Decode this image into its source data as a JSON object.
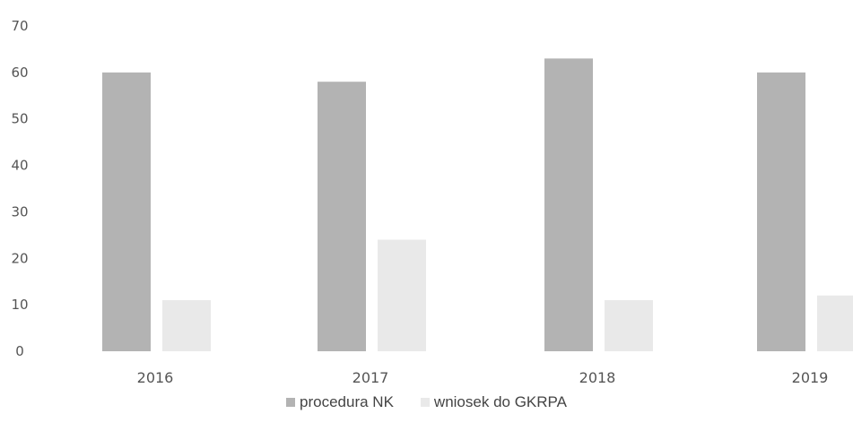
{
  "chart_data": {
    "type": "bar",
    "categories": [
      "2016",
      "2017",
      "2018",
      "2019"
    ],
    "series": [
      {
        "name": "procedura NK",
        "values": [
          60,
          58,
          63,
          60
        ],
        "color": "#b3b3b3"
      },
      {
        "name": "wniosek do GKRPA",
        "values": [
          11,
          24,
          11,
          12
        ],
        "color": "#e9e9e9"
      }
    ],
    "title": "",
    "xlabel": "",
    "ylabel": "",
    "ylim": [
      0,
      70
    ],
    "yticks": [
      "0",
      "10",
      "20",
      "30",
      "40",
      "50",
      "60",
      "70"
    ],
    "grid": false,
    "legend_position": "bottom"
  }
}
